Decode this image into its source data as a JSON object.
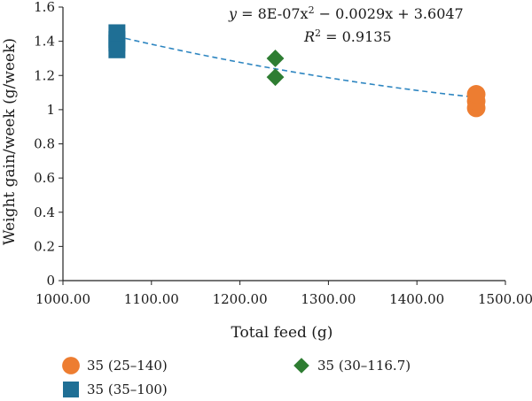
{
  "chart_data": {
    "type": "scatter",
    "xlabel": "Total feed (g)",
    "ylabel": "Weight gain/week (g/week)",
    "xlim": [
      1000,
      1500
    ],
    "ylim": [
      0,
      1.6
    ],
    "x_ticks": [
      1000,
      1100,
      1200,
      1300,
      1400,
      1500
    ],
    "x_tick_labels": [
      "1000.00",
      "1100.00",
      "1200.00",
      "1300.00",
      "1400.00",
      "1500.00"
    ],
    "y_ticks": [
      0,
      0.2,
      0.4,
      0.6,
      0.8,
      1,
      1.2,
      1.4,
      1.6
    ],
    "y_tick_labels": [
      "0",
      "0.2",
      "0.4",
      "0.6",
      "0.8",
      "1",
      "1.2",
      "1.4",
      "1.6"
    ],
    "series": [
      {
        "name": "35 (25–140)",
        "marker": "circle",
        "color": "#ED7D31",
        "points": [
          [
            1467,
            1.01
          ],
          [
            1467,
            1.05
          ],
          [
            1467,
            1.09
          ]
        ]
      },
      {
        "name": "35 (30–116.7)",
        "marker": "diamond",
        "color": "#2E7D32",
        "points": [
          [
            1240,
            1.19
          ],
          [
            1240,
            1.3
          ]
        ]
      },
      {
        "name": "35 (35–100)",
        "marker": "square",
        "color": "#1F6F95",
        "points": [
          [
            1061,
            1.35
          ],
          [
            1061,
            1.39
          ],
          [
            1061,
            1.41
          ],
          [
            1061,
            1.45
          ]
        ]
      }
    ],
    "trendline": {
      "type": "polynomial",
      "style": "dashed",
      "color": "#2E86C1",
      "coefficients": [
        8e-07,
        -0.0029,
        3.6047
      ],
      "x_range": [
        1061,
        1467
      ],
      "equation_prefix": "y",
      "equation_body": " = 8E-07x",
      "equation_exp": "2",
      "equation_tail": " − 0.0029x + 3.6047",
      "r2_prefix": "R",
      "r2_exp": "2",
      "r2_value": " = 0.9135"
    },
    "legend_placement": "bottom",
    "grid": false
  }
}
